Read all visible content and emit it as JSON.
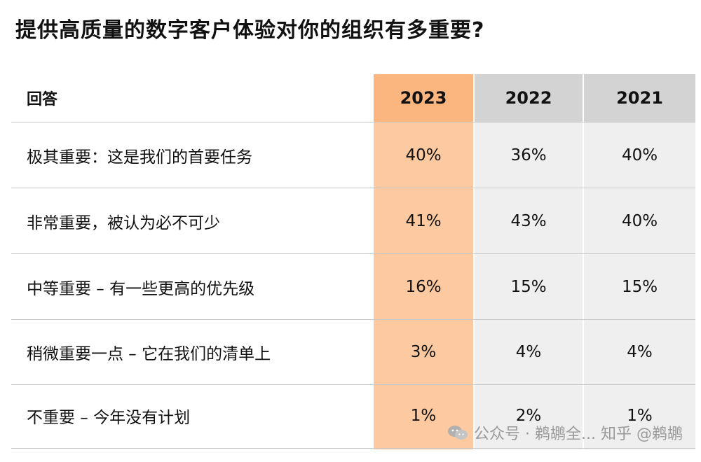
{
  "title": "提供高质量的数字客户体验对你的组织有多重要?",
  "table": {
    "header_label": "回答",
    "years": [
      "2023",
      "2022",
      "2021"
    ],
    "rows": [
      {
        "label": "极其重要：这是我们的首要任务",
        "values": [
          "40%",
          "36%",
          "40%"
        ]
      },
      {
        "label": "非常重要，被认为必不可少",
        "values": [
          "41%",
          "43%",
          "40%"
        ]
      },
      {
        "label": "中等重要 – 有一些更高的优先级",
        "values": [
          "16%",
          "15%",
          "15%"
        ]
      },
      {
        "label": "稍微重要一点 – 它在我们的清单上",
        "values": [
          "3%",
          "4%",
          "4%"
        ]
      },
      {
        "label": "不重要 – 今年没有计划",
        "values": [
          "1%",
          "2%",
          "1%"
        ]
      }
    ]
  },
  "chart_data": {
    "type": "table",
    "title": "提供高质量的数字客户体验对你的组织有多重要?",
    "columns": [
      "回答",
      "2023",
      "2022",
      "2021"
    ],
    "categories": [
      "极其重要：这是我们的首要任务",
      "非常重要，被认为必不可少",
      "中等重要 – 有一些更高的优先级",
      "稍微重要一点 – 它在我们的清单上",
      "不重要 – 今年没有计划"
    ],
    "series": [
      {
        "name": "2023",
        "values": [
          40,
          41,
          16,
          3,
          1
        ]
      },
      {
        "name": "2022",
        "values": [
          36,
          43,
          15,
          4,
          2
        ]
      },
      {
        "name": "2021",
        "values": [
          40,
          40,
          15,
          4,
          1
        ]
      }
    ]
  },
  "colors": {
    "highlight_header": "#fbb57e",
    "highlight_column": "#fdc9a0",
    "gray_header": "#d3d3d3",
    "gray_column": "#efefef"
  },
  "watermark": {
    "text": "公众号 · 鹈鹕全... 知乎 @鹈鹕",
    "icon": "wechat-icon"
  }
}
